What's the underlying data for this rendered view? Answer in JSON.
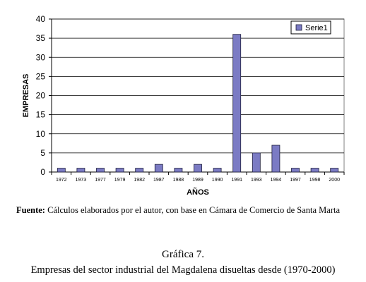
{
  "chart_data": {
    "type": "bar",
    "categories": [
      "1972",
      "1973",
      "1977",
      "1979",
      "1982",
      "1987",
      "1988",
      "1989",
      "1990",
      "1991",
      "1993",
      "1994",
      "1997",
      "1998",
      "2000"
    ],
    "series": [
      {
        "name": "Serie1",
        "values": [
          1,
          1,
          1,
          1,
          1,
          2,
          1,
          2,
          1,
          36,
          5,
          7,
          1,
          1,
          1
        ]
      }
    ],
    "xlabel": "AÑOS",
    "ylabel": "EMPRESAS",
    "ylim": [
      0,
      40
    ],
    "yticks": [
      0,
      5,
      10,
      15,
      20,
      25,
      30,
      35,
      40
    ],
    "grid": true,
    "legend": "top-right",
    "colors": {
      "bar": "#7b7bc4",
      "bar_edge": "#1c1c3a",
      "plot_bg": "#ffffff",
      "grid": "#000000"
    }
  },
  "source": {
    "label": "Fuente:",
    "text": " Cálculos elaborados por el autor, con base en Cámara de Comercio de Santa Marta"
  },
  "caption": {
    "number": "Gráfica 7.",
    "text": "Empresas del sector industrial del Magdalena disueltas desde (1970-2000)"
  }
}
